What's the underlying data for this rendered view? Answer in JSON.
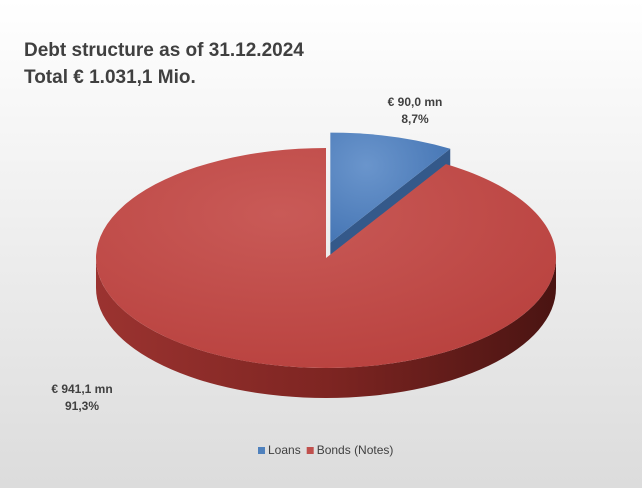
{
  "chart_data": {
    "type": "pie3d",
    "title": "Debt structure  as of 31.12.2024",
    "subtitle": "Total € 1.031,1 Mio.",
    "categories": [
      "Loans",
      "Bonds (Notes)"
    ],
    "values": [
      90.0,
      941.1
    ],
    "value_labels": [
      "€ 90,0  mn",
      "€ 941,1  mn"
    ],
    "percentages": [
      8.7,
      91.3
    ],
    "percentage_labels": [
      "8,7%",
      "91,3%"
    ],
    "colors": [
      "#4f81bd",
      "#c0504d"
    ],
    "exploded": [
      true,
      false
    ],
    "legend": "bottom"
  }
}
